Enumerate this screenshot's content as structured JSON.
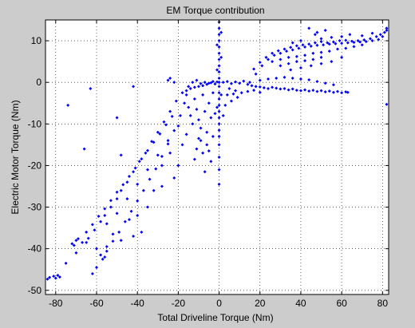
{
  "figure": {
    "background": "#cccccc",
    "axes_background": "#ffffff",
    "marker_color": "#0000ff"
  },
  "chart_data": {
    "type": "scatter",
    "title": "EM Torque contribution",
    "xlabel": "Total Driveline Torque (Nm)",
    "ylabel": "Electric Motor Torque (Nm)",
    "xlim": [
      -85,
      83
    ],
    "ylim": [
      -51,
      15
    ],
    "grid": true,
    "grid_style": "dotted",
    "marker": "dot",
    "xticks": [
      -80,
      -60,
      -40,
      -20,
      0,
      20,
      40,
      60,
      80
    ],
    "xtick_labels": [
      "-80",
      "-60",
      "-40",
      "-20",
      "0",
      "20",
      "40",
      "60",
      "80"
    ],
    "yticks": [
      -50,
      -40,
      -30,
      -20,
      -10,
      0,
      10
    ],
    "ytick_labels": [
      "-50",
      "-40",
      "-30",
      "-20",
      "-10",
      "0",
      "10"
    ],
    "series": [
      {
        "points": [
          [
            -84,
            -47.3
          ],
          [
            -83,
            -46.9
          ],
          [
            -81,
            -46.6
          ],
          [
            -79,
            -46.4
          ],
          [
            -78,
            -46.8
          ],
          [
            -80,
            -47.1
          ],
          [
            -62,
            -46.0
          ],
          [
            -60,
            -44.5
          ],
          [
            -57,
            -42.5
          ],
          [
            -55,
            -40.6
          ],
          [
            -52,
            -38.2
          ],
          [
            -49,
            -36.0
          ],
          [
            -46,
            -33.5
          ],
          [
            -43,
            -31.0
          ],
          [
            -40,
            -28.5
          ],
          [
            -37,
            -26.0
          ],
          [
            -34,
            -23.3
          ],
          [
            -31,
            -20.8
          ],
          [
            -28,
            -17.8
          ],
          [
            -25,
            -14.8
          ],
          [
            -22,
            -11.6
          ],
          [
            -19,
            -8.0
          ],
          [
            -17,
            -5.0
          ],
          [
            -16,
            -3.0
          ],
          [
            -74,
            -5.5
          ],
          [
            -63,
            -1.5
          ],
          [
            -42,
            -1.0
          ],
          [
            -25,
            0.5
          ],
          [
            -24,
            1.0
          ],
          [
            -22,
            0.0
          ],
          [
            -67,
            -38.5
          ],
          [
            -64,
            -37.5
          ],
          [
            -61,
            -35.5
          ],
          [
            -58,
            -33.5
          ],
          [
            -56,
            -32.0
          ],
          [
            -53,
            -30.0
          ],
          [
            -50,
            -28.0
          ],
          [
            -48,
            -26.0
          ],
          [
            -45,
            -24.0
          ],
          [
            -42,
            -21.5
          ],
          [
            -39,
            -19.0
          ],
          [
            -36,
            -17.0
          ],
          [
            -33,
            -14.2
          ],
          [
            -30,
            -12.0
          ],
          [
            -27,
            -9.5
          ],
          [
            -24,
            -7.0
          ],
          [
            -21,
            -4.5
          ],
          [
            -18,
            -2.5
          ],
          [
            -70,
            -38.0
          ],
          [
            -72,
            -38.8
          ],
          [
            -69,
            -37.6
          ],
          [
            -71,
            -39.2
          ],
          [
            -65,
            -36.0
          ],
          [
            -62,
            -34.2
          ],
          [
            -59,
            -32.2
          ],
          [
            -56,
            -30.4
          ],
          [
            -53,
            -28.4
          ],
          [
            -50,
            -26.4
          ],
          [
            -47,
            -24.6
          ],
          [
            -44,
            -22.6
          ],
          [
            -41,
            -20.6
          ],
          [
            -38,
            -18.4
          ],
          [
            -35,
            -16.4
          ],
          [
            -32,
            -14.4
          ],
          [
            -29,
            -12.4
          ],
          [
            -26,
            -10.2
          ],
          [
            -23,
            -8.2
          ],
          [
            -75,
            -43.5
          ],
          [
            -70,
            -41.0
          ],
          [
            -65,
            -38.5
          ],
          [
            -55,
            -34.0
          ],
          [
            -50,
            -31.5
          ],
          [
            -45,
            -28.0
          ],
          [
            -40,
            -24.5
          ],
          [
            -35,
            -21.0
          ],
          [
            -30,
            -17.5
          ],
          [
            -25,
            -14.0
          ],
          [
            -20,
            -10.5
          ],
          [
            -38,
            -36.0
          ],
          [
            -42,
            -37.0
          ],
          [
            -35,
            -30.0
          ],
          [
            -32,
            -26.0
          ],
          [
            -28,
            -20.0
          ],
          [
            -24,
            -17.0
          ],
          [
            -60,
            -40.0
          ],
          [
            -58,
            -41.5
          ],
          [
            -55,
            -39.5
          ],
          [
            -52,
            -36.5
          ],
          [
            -16,
            -2.0
          ],
          [
            -14,
            -1.5
          ],
          [
            -12,
            -1.2
          ],
          [
            -10,
            -1.0
          ],
          [
            -8,
            -0.8
          ],
          [
            -6,
            -0.5
          ],
          [
            -15,
            -1.0
          ],
          [
            -13,
            0.0
          ],
          [
            -11,
            0.5
          ],
          [
            -9,
            -0.3
          ],
          [
            -7,
            0.0
          ],
          [
            -5,
            -0.2
          ],
          [
            -4,
            -0.1
          ],
          [
            -3,
            0.2
          ],
          [
            -2,
            -0.4
          ],
          [
            -1,
            0.1
          ],
          [
            -12,
            -4.0
          ],
          [
            -11,
            -6.5
          ],
          [
            -10,
            -9.0
          ],
          [
            -9,
            -11.0
          ],
          [
            -8,
            -3.0
          ],
          [
            -7,
            -7.0
          ],
          [
            -6,
            -12.0
          ],
          [
            -5,
            -5.0
          ],
          [
            -4,
            -8.5
          ],
          [
            -3,
            -2.5
          ],
          [
            -13,
            -10.0
          ],
          [
            -14,
            -8.0
          ],
          [
            -6,
            -15.0
          ],
          [
            -5,
            -16.5
          ],
          [
            -4,
            -19.0
          ],
          [
            -3,
            -13.0
          ],
          [
            -2,
            -7.5
          ],
          [
            -15,
            -6.0
          ],
          [
            -10,
            -13.5
          ],
          [
            -8,
            -17.0
          ],
          [
            -16,
            -12.5
          ],
          [
            -18,
            -15.0
          ],
          [
            -20,
            -20.0
          ],
          [
            -22,
            -23.0
          ],
          [
            -12,
            -18.5
          ],
          [
            -7,
            -21.5
          ],
          [
            -9,
            -14.0
          ],
          [
            -11,
            -16.0
          ],
          [
            0,
            14.5
          ],
          [
            0,
            13.0
          ],
          [
            0,
            11.5
          ],
          [
            0,
            10.0
          ],
          [
            0,
            8.5
          ],
          [
            0,
            7.0
          ],
          [
            0,
            5.5
          ],
          [
            0,
            4.0
          ],
          [
            0,
            2.5
          ],
          [
            0,
            1.0
          ],
          [
            0,
            0.0
          ],
          [
            0,
            -1.0
          ],
          [
            0,
            -2.5
          ],
          [
            0,
            -4.0
          ],
          [
            0,
            -5.5
          ],
          [
            0,
            -7.0
          ],
          [
            0,
            -8.5
          ],
          [
            0,
            -10.0
          ],
          [
            0,
            -11.5
          ],
          [
            0,
            -13.0
          ],
          [
            0,
            -15.0
          ],
          [
            0,
            -18.0
          ],
          [
            0,
            -21.0
          ],
          [
            0,
            -24.5
          ],
          [
            1,
            12.0
          ],
          [
            -1,
            9.0
          ],
          [
            1,
            6.0
          ],
          [
            -1,
            3.0
          ],
          [
            1,
            -3.0
          ],
          [
            -1,
            -6.0
          ],
          [
            2,
            0.0
          ],
          [
            4,
            0.2
          ],
          [
            6,
            -0.3
          ],
          [
            8,
            0.1
          ],
          [
            10,
            -0.2
          ],
          [
            12,
            0.3
          ],
          [
            14,
            -0.5
          ],
          [
            16,
            -0.8
          ],
          [
            18,
            -1.0
          ],
          [
            20,
            -1.1
          ],
          [
            22,
            -1.3
          ],
          [
            24,
            -1.5
          ],
          [
            26,
            -1.2
          ],
          [
            28,
            -1.4
          ],
          [
            30,
            -1.6
          ],
          [
            32,
            -1.5
          ],
          [
            34,
            -1.8
          ],
          [
            36,
            -1.6
          ],
          [
            38,
            -1.9
          ],
          [
            40,
            -2.0
          ],
          [
            42,
            -1.8
          ],
          [
            44,
            -2.1
          ],
          [
            46,
            -1.9
          ],
          [
            48,
            -2.2
          ],
          [
            50,
            -2.0
          ],
          [
            52,
            -2.3
          ],
          [
            54,
            -2.1
          ],
          [
            56,
            -2.4
          ],
          [
            58,
            -2.2
          ],
          [
            60,
            -2.5
          ],
          [
            62,
            -2.3
          ],
          [
            63,
            -2.4
          ],
          [
            5,
            -1.5
          ],
          [
            8,
            -2.0
          ],
          [
            11,
            -2.5
          ],
          [
            14,
            -2.2
          ],
          [
            17,
            -1.9
          ],
          [
            20,
            -2.4
          ],
          [
            4,
            -3.0
          ],
          [
            6,
            -4.5
          ],
          [
            3,
            -5.5
          ],
          [
            7,
            -2.8
          ],
          [
            9,
            -3.6
          ],
          [
            2,
            -8.0
          ],
          [
            20,
            0.5
          ],
          [
            24,
            0.8
          ],
          [
            28,
            1.0
          ],
          [
            32,
            1.2
          ],
          [
            36,
            1.0
          ],
          [
            40,
            0.8
          ],
          [
            44,
            0.6
          ],
          [
            48,
            0.2
          ],
          [
            52,
            -0.2
          ],
          [
            56,
            -0.6
          ],
          [
            15,
            0.0
          ],
          [
            18,
            2.0
          ],
          [
            21,
            4.0
          ],
          [
            24,
            5.5
          ],
          [
            27,
            6.5
          ],
          [
            30,
            7.0
          ],
          [
            33,
            7.5
          ],
          [
            36,
            7.8
          ],
          [
            39,
            8.2
          ],
          [
            42,
            8.5
          ],
          [
            45,
            8.7
          ],
          [
            48,
            8.9
          ],
          [
            51,
            9.0
          ],
          [
            54,
            9.2
          ],
          [
            57,
            9.3
          ],
          [
            60,
            9.4
          ],
          [
            63,
            9.5
          ],
          [
            66,
            9.6
          ],
          [
            69,
            9.7
          ],
          [
            72,
            9.8
          ],
          [
            75,
            10.0
          ],
          [
            78,
            10.3
          ],
          [
            80,
            11.0
          ],
          [
            82,
            12.5
          ],
          [
            82,
            13.0
          ],
          [
            81,
            12.0
          ],
          [
            79,
            11.5
          ],
          [
            77,
            11.0
          ],
          [
            74,
            10.5
          ],
          [
            71,
            10.2
          ],
          [
            68,
            10.0
          ],
          [
            65,
            9.9
          ],
          [
            62,
            10.1
          ],
          [
            59,
            10.0
          ],
          [
            56,
            9.7
          ],
          [
            53,
            9.5
          ],
          [
            50,
            9.8
          ],
          [
            47,
            9.5
          ],
          [
            44,
            9.2
          ],
          [
            41,
            9.0
          ],
          [
            38,
            8.8
          ],
          [
            35,
            8.4
          ],
          [
            32,
            8.0
          ],
          [
            29,
            7.6
          ],
          [
            26,
            7.0
          ],
          [
            23,
            6.0
          ],
          [
            20,
            4.8
          ],
          [
            17,
            3.2
          ],
          [
            26,
            5.0
          ],
          [
            30,
            5.5
          ],
          [
            34,
            6.0
          ],
          [
            38,
            6.2
          ],
          [
            42,
            6.5
          ],
          [
            46,
            7.0
          ],
          [
            50,
            7.2
          ],
          [
            54,
            7.5
          ],
          [
            58,
            8.0
          ],
          [
            62,
            8.2
          ],
          [
            66,
            8.6
          ],
          [
            70,
            9.0
          ],
          [
            30,
            4.0
          ],
          [
            34,
            4.5
          ],
          [
            38,
            5.0
          ],
          [
            42,
            5.2
          ],
          [
            46,
            5.5
          ],
          [
            50,
            6.0
          ],
          [
            35,
            3.0
          ],
          [
            40,
            3.5
          ],
          [
            45,
            4.0
          ],
          [
            50,
            4.5
          ],
          [
            55,
            5.0
          ],
          [
            60,
            6.0
          ],
          [
            48,
            12.0
          ],
          [
            52,
            12.5
          ],
          [
            47,
            11.5
          ],
          [
            44,
            13.0
          ],
          [
            64,
            11.5
          ],
          [
            60,
            11.0
          ],
          [
            70,
            11.2
          ],
          [
            75,
            11.8
          ],
          [
            50,
            10.5
          ],
          [
            55,
            10.8
          ],
          [
            40,
            10.0
          ],
          [
            36,
            9.5
          ],
          [
            82,
            -5.3
          ],
          [
            -66,
            -16.0
          ],
          [
            -48,
            -17.5
          ],
          [
            -50,
            -8.5
          ],
          [
            -28,
            -25.0
          ],
          [
            -44,
            -33.0
          ],
          [
            -40,
            -32.0
          ],
          [
            -48,
            -38.0
          ],
          [
            -56,
            -42.0
          ]
        ]
      }
    ]
  }
}
